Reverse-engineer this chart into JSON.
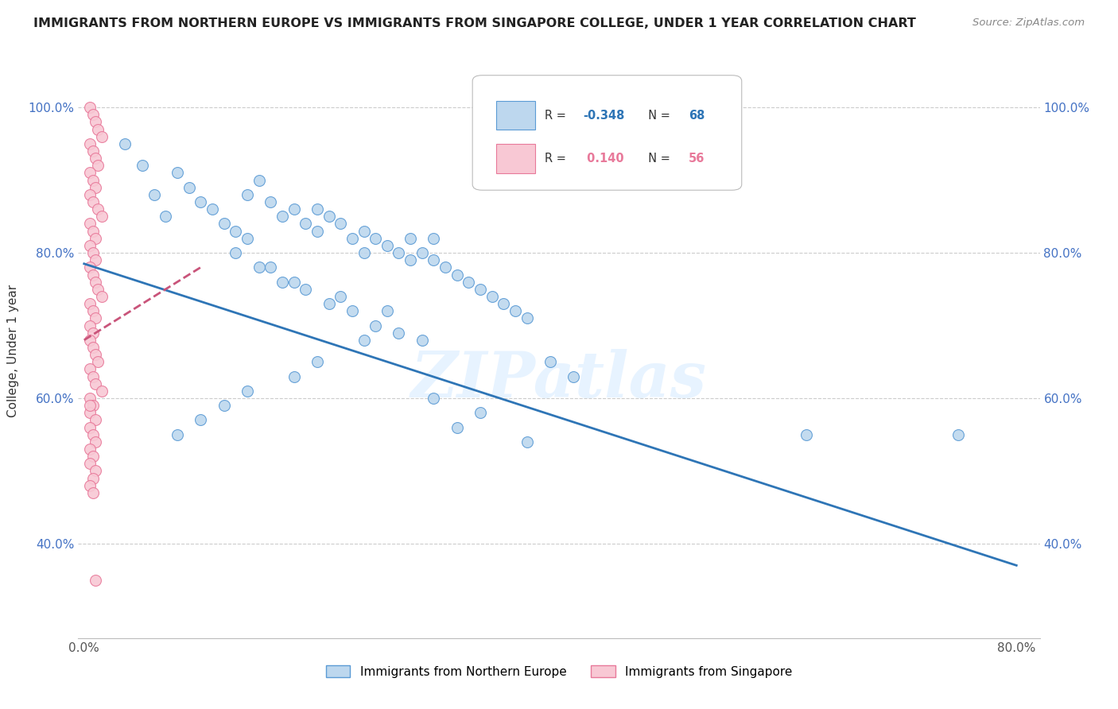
{
  "title": "IMMIGRANTS FROM NORTHERN EUROPE VS IMMIGRANTS FROM SINGAPORE COLLEGE, UNDER 1 YEAR CORRELATION CHART",
  "source": "Source: ZipAtlas.com",
  "ylabel": "College, Under 1 year",
  "legend_labels": [
    "Immigrants from Northern Europe",
    "Immigrants from Singapore"
  ],
  "blue_R": -0.348,
  "blue_N": 68,
  "pink_R": 0.14,
  "pink_N": 56,
  "xlim": [
    -0.005,
    0.82
  ],
  "ylim": [
    0.27,
    1.06
  ],
  "xtick_positions": [
    0.0,
    0.1,
    0.2,
    0.3,
    0.4,
    0.5,
    0.6,
    0.7,
    0.8
  ],
  "xtick_labels": [
    "0.0%",
    "",
    "",
    "",
    "",
    "",
    "",
    "",
    "80.0%"
  ],
  "ytick_positions": [
    0.4,
    0.6,
    0.8,
    1.0
  ],
  "ytick_labels": [
    "40.0%",
    "60.0%",
    "80.0%",
    "100.0%"
  ],
  "blue_color": "#BDD7EE",
  "pink_color": "#F8C8D4",
  "blue_edge_color": "#5B9BD5",
  "pink_edge_color": "#E8799A",
  "blue_line_color": "#2E75B6",
  "pink_line_color": "#C9547A",
  "watermark": "ZIPatlas",
  "grid_color": "#CCCCCC",
  "tick_label_color": "#4472C4",
  "blue_scatter_x": [
    0.035,
    0.05,
    0.06,
    0.07,
    0.08,
    0.09,
    0.1,
    0.11,
    0.12,
    0.13,
    0.14,
    0.14,
    0.15,
    0.16,
    0.17,
    0.18,
    0.19,
    0.2,
    0.2,
    0.21,
    0.22,
    0.23,
    0.24,
    0.24,
    0.25,
    0.26,
    0.27,
    0.28,
    0.28,
    0.29,
    0.3,
    0.3,
    0.31,
    0.32,
    0.33,
    0.34,
    0.35,
    0.36,
    0.37,
    0.38,
    0.15,
    0.17,
    0.19,
    0.21,
    0.23,
    0.25,
    0.27,
    0.29,
    0.13,
    0.16,
    0.18,
    0.22,
    0.26,
    0.24,
    0.2,
    0.18,
    0.14,
    0.12,
    0.1,
    0.08,
    0.4,
    0.42,
    0.62,
    0.75,
    0.3,
    0.34,
    0.32,
    0.38
  ],
  "blue_scatter_y": [
    0.95,
    0.92,
    0.88,
    0.85,
    0.91,
    0.89,
    0.87,
    0.86,
    0.84,
    0.83,
    0.88,
    0.82,
    0.9,
    0.87,
    0.85,
    0.86,
    0.84,
    0.83,
    0.86,
    0.85,
    0.84,
    0.82,
    0.83,
    0.8,
    0.82,
    0.81,
    0.8,
    0.79,
    0.82,
    0.8,
    0.79,
    0.82,
    0.78,
    0.77,
    0.76,
    0.75,
    0.74,
    0.73,
    0.72,
    0.71,
    0.78,
    0.76,
    0.75,
    0.73,
    0.72,
    0.7,
    0.69,
    0.68,
    0.8,
    0.78,
    0.76,
    0.74,
    0.72,
    0.68,
    0.65,
    0.63,
    0.61,
    0.59,
    0.57,
    0.55,
    0.65,
    0.63,
    0.55,
    0.55,
    0.6,
    0.58,
    0.56,
    0.54
  ],
  "pink_scatter_x": [
    0.005,
    0.008,
    0.01,
    0.012,
    0.015,
    0.005,
    0.008,
    0.01,
    0.012,
    0.005,
    0.008,
    0.01,
    0.005,
    0.008,
    0.012,
    0.015,
    0.005,
    0.008,
    0.01,
    0.005,
    0.008,
    0.01,
    0.005,
    0.008,
    0.01,
    0.012,
    0.015,
    0.005,
    0.008,
    0.01,
    0.005,
    0.008,
    0.005,
    0.008,
    0.01,
    0.012,
    0.005,
    0.008,
    0.01,
    0.015,
    0.005,
    0.008,
    0.005,
    0.01,
    0.005,
    0.008,
    0.01,
    0.005,
    0.008,
    0.005,
    0.01,
    0.008,
    0.005,
    0.008,
    0.005,
    0.01
  ],
  "pink_scatter_y": [
    1.0,
    0.99,
    0.98,
    0.97,
    0.96,
    0.95,
    0.94,
    0.93,
    0.92,
    0.91,
    0.9,
    0.89,
    0.88,
    0.87,
    0.86,
    0.85,
    0.84,
    0.83,
    0.82,
    0.81,
    0.8,
    0.79,
    0.78,
    0.77,
    0.76,
    0.75,
    0.74,
    0.73,
    0.72,
    0.71,
    0.7,
    0.69,
    0.68,
    0.67,
    0.66,
    0.65,
    0.64,
    0.63,
    0.62,
    0.61,
    0.6,
    0.59,
    0.58,
    0.57,
    0.56,
    0.55,
    0.54,
    0.53,
    0.52,
    0.51,
    0.5,
    0.49,
    0.48,
    0.47,
    0.59,
    0.35
  ]
}
